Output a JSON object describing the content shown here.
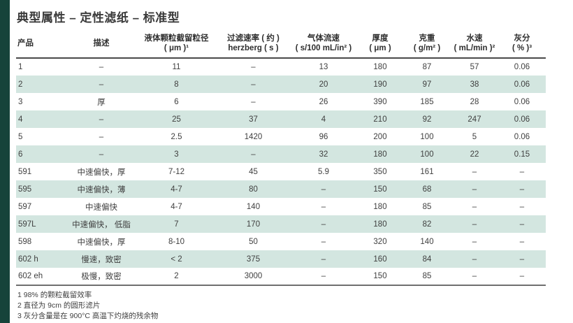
{
  "title": "典型属性 – 定性滤纸 – 标准型",
  "colors": {
    "accent_bar": "#16433a",
    "stripe": "#d3e6e0",
    "header_rule": "#4a4a4a",
    "bottom_rule": "#6f6f6f",
    "title_text": "#3a3a3a",
    "header_text": "#2e2e2e",
    "body_text": "#3f3f3f"
  },
  "table": {
    "columns": [
      {
        "name": "product",
        "line1": "产品",
        "line2": "",
        "align": "left"
      },
      {
        "name": "description",
        "line1": "描述",
        "line2": "",
        "align": "center"
      },
      {
        "name": "particle-retention",
        "line1": "液体颗粒截留粒径",
        "line2": "( μm )¹",
        "align": "center"
      },
      {
        "name": "filtration-speed",
        "line1": "过滤速率 ( 约 )",
        "line2": "herzberg ( s )",
        "align": "center"
      },
      {
        "name": "air-flow-rate",
        "line1": "气体流速",
        "line2": "( s/100 mL/in² )",
        "align": "center"
      },
      {
        "name": "thickness",
        "line1": "厚度",
        "line2": "( μm )",
        "align": "center"
      },
      {
        "name": "basis-weight",
        "line1": "克重",
        "line2": "( g/m² )",
        "align": "center"
      },
      {
        "name": "water-speed",
        "line1": "水速",
        "line2": "( mL/min )²",
        "align": "center"
      },
      {
        "name": "ash-content",
        "line1": "灰分",
        "line2": "( % )³",
        "align": "center"
      }
    ],
    "rows": [
      {
        "striped": false,
        "cells": [
          "1",
          "–",
          "11",
          "–",
          "13",
          "180",
          "87",
          "57",
          "0.06"
        ]
      },
      {
        "striped": true,
        "cells": [
          "2",
          "–",
          "8",
          "–",
          "20",
          "190",
          "97",
          "38",
          "0.06"
        ]
      },
      {
        "striped": false,
        "cells": [
          "3",
          "厚",
          "6",
          "–",
          "26",
          "390",
          "185",
          "28",
          "0.06"
        ]
      },
      {
        "striped": true,
        "cells": [
          "4",
          "–",
          "25",
          "37",
          "4",
          "210",
          "92",
          "247",
          "0.06"
        ]
      },
      {
        "striped": false,
        "cells": [
          "5",
          "–",
          "2.5",
          "1420",
          "96",
          "200",
          "100",
          "5",
          "0.06"
        ]
      },
      {
        "striped": true,
        "cells": [
          "6",
          "–",
          "3",
          "–",
          "32",
          "180",
          "100",
          "22",
          "0.15"
        ]
      },
      {
        "striped": false,
        "cells": [
          "591",
          "中速偏快，厚",
          "7-12",
          "45",
          "5.9",
          "350",
          "161",
          "–",
          "–"
        ]
      },
      {
        "striped": true,
        "cells": [
          "595",
          "中速偏快，薄",
          "4-7",
          "80",
          "–",
          "150",
          "68",
          "–",
          "–"
        ]
      },
      {
        "striped": false,
        "cells": [
          "597",
          "中速偏快",
          "4-7",
          "140",
          "–",
          "180",
          "85",
          "–",
          "–"
        ]
      },
      {
        "striped": true,
        "cells": [
          "597L",
          "中速偏快， 低脂",
          "7",
          "170",
          "–",
          "180",
          "82",
          "–",
          "–"
        ]
      },
      {
        "striped": false,
        "cells": [
          "598",
          "中速偏快，厚",
          "8-10",
          "50",
          "–",
          "320",
          "140",
          "–",
          "–"
        ]
      },
      {
        "striped": true,
        "cells": [
          "602 h",
          "慢速，致密",
          "< 2",
          "375",
          "–",
          "160",
          "84",
          "–",
          "–"
        ]
      },
      {
        "striped": false,
        "cells": [
          "602 eh",
          "极慢，致密",
          "2",
          "3000",
          "–",
          "150",
          "85",
          "–",
          "–"
        ]
      }
    ]
  },
  "footnotes": [
    "1 98% 的颗粒截留效率",
    "2 直径为 9cm 的圆形滤片",
    "3 灰分含量是在 900°C 高温下灼烧的残余物"
  ]
}
